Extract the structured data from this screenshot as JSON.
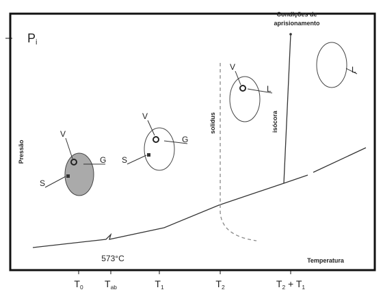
{
  "labels": {
    "pi": [
      "P",
      "i"
    ],
    "trapping": [
      "Condições de",
      "aprisionamento"
    ],
    "pressure": "Pressão",
    "temperature": "Temperatura",
    "temp_573": "573°C",
    "solidus": "solidus",
    "isochore": "isócora"
  },
  "inclusions": [
    {
      "labels": [
        "V",
        "G",
        "S"
      ]
    },
    {
      "labels": [
        "V",
        "G",
        "S"
      ]
    },
    {
      "labels": [
        "V",
        "L"
      ]
    },
    {
      "labels": [
        "L"
      ]
    }
  ],
  "x_ticks": [
    [
      "T",
      "0"
    ],
    [
      "T",
      "ab"
    ],
    [
      "T",
      "1"
    ],
    [
      "T",
      "2"
    ],
    [
      "T",
      "2",
      " + T",
      "1"
    ]
  ]
}
